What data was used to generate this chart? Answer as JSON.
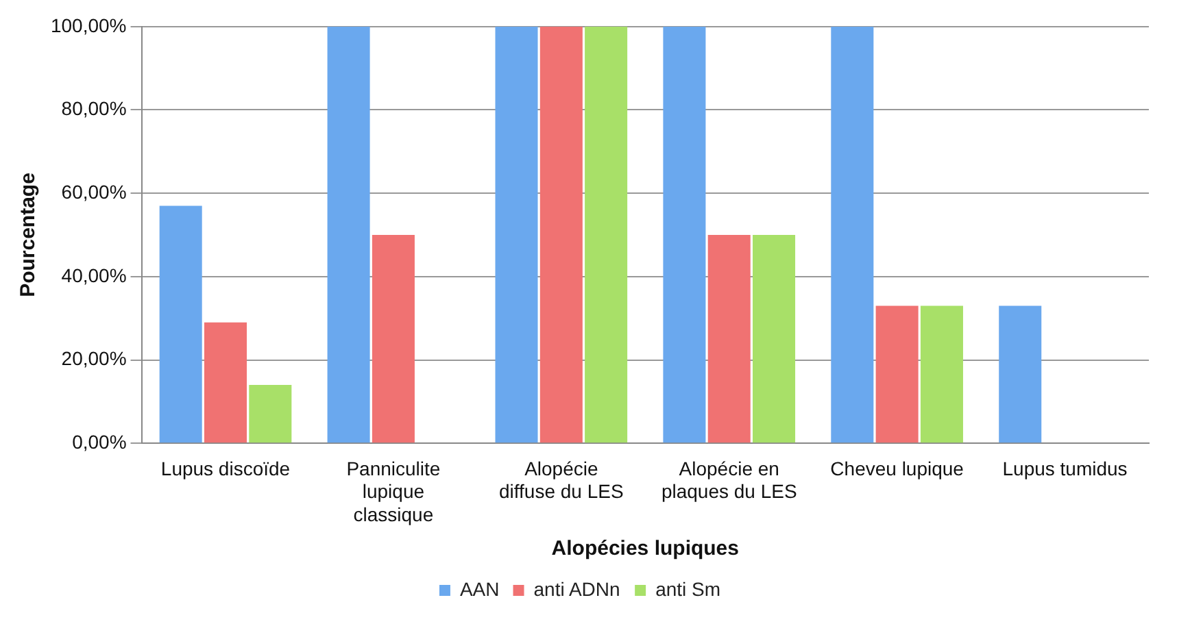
{
  "chart_data": {
    "type": "bar",
    "xlabel": "Alopécies lupiques",
    "ylabel": "Pourcentage",
    "categories": [
      "Lupus discoïde",
      "Panniculite lupique classique",
      "Alopécie diffuse du LES",
      "Alopécie en plaques du LES",
      "Cheveu lupique",
      "Lupus tumidus"
    ],
    "series": [
      {
        "name": "AAN",
        "color": "#6aa8ee",
        "values": [
          57,
          100,
          100,
          100,
          100,
          33
        ]
      },
      {
        "name": "anti ADNn",
        "color": "#f07272",
        "values": [
          29,
          50,
          100,
          50,
          33,
          0
        ]
      },
      {
        "name": "anti Sm",
        "color": "#a8e068",
        "values": [
          14,
          0,
          100,
          50,
          33,
          0
        ]
      }
    ],
    "ylim": [
      0,
      100
    ],
    "yticks": [
      {
        "value": 0,
        "label": "0,00%"
      },
      {
        "value": 20,
        "label": "20,00%"
      },
      {
        "value": 40,
        "label": "40,00%"
      },
      {
        "value": 60,
        "label": "60,00%"
      },
      {
        "value": 80,
        "label": "80,00%"
      },
      {
        "value": 100,
        "label": "100,00%"
      }
    ],
    "grid": "y",
    "legend": "bottom"
  }
}
